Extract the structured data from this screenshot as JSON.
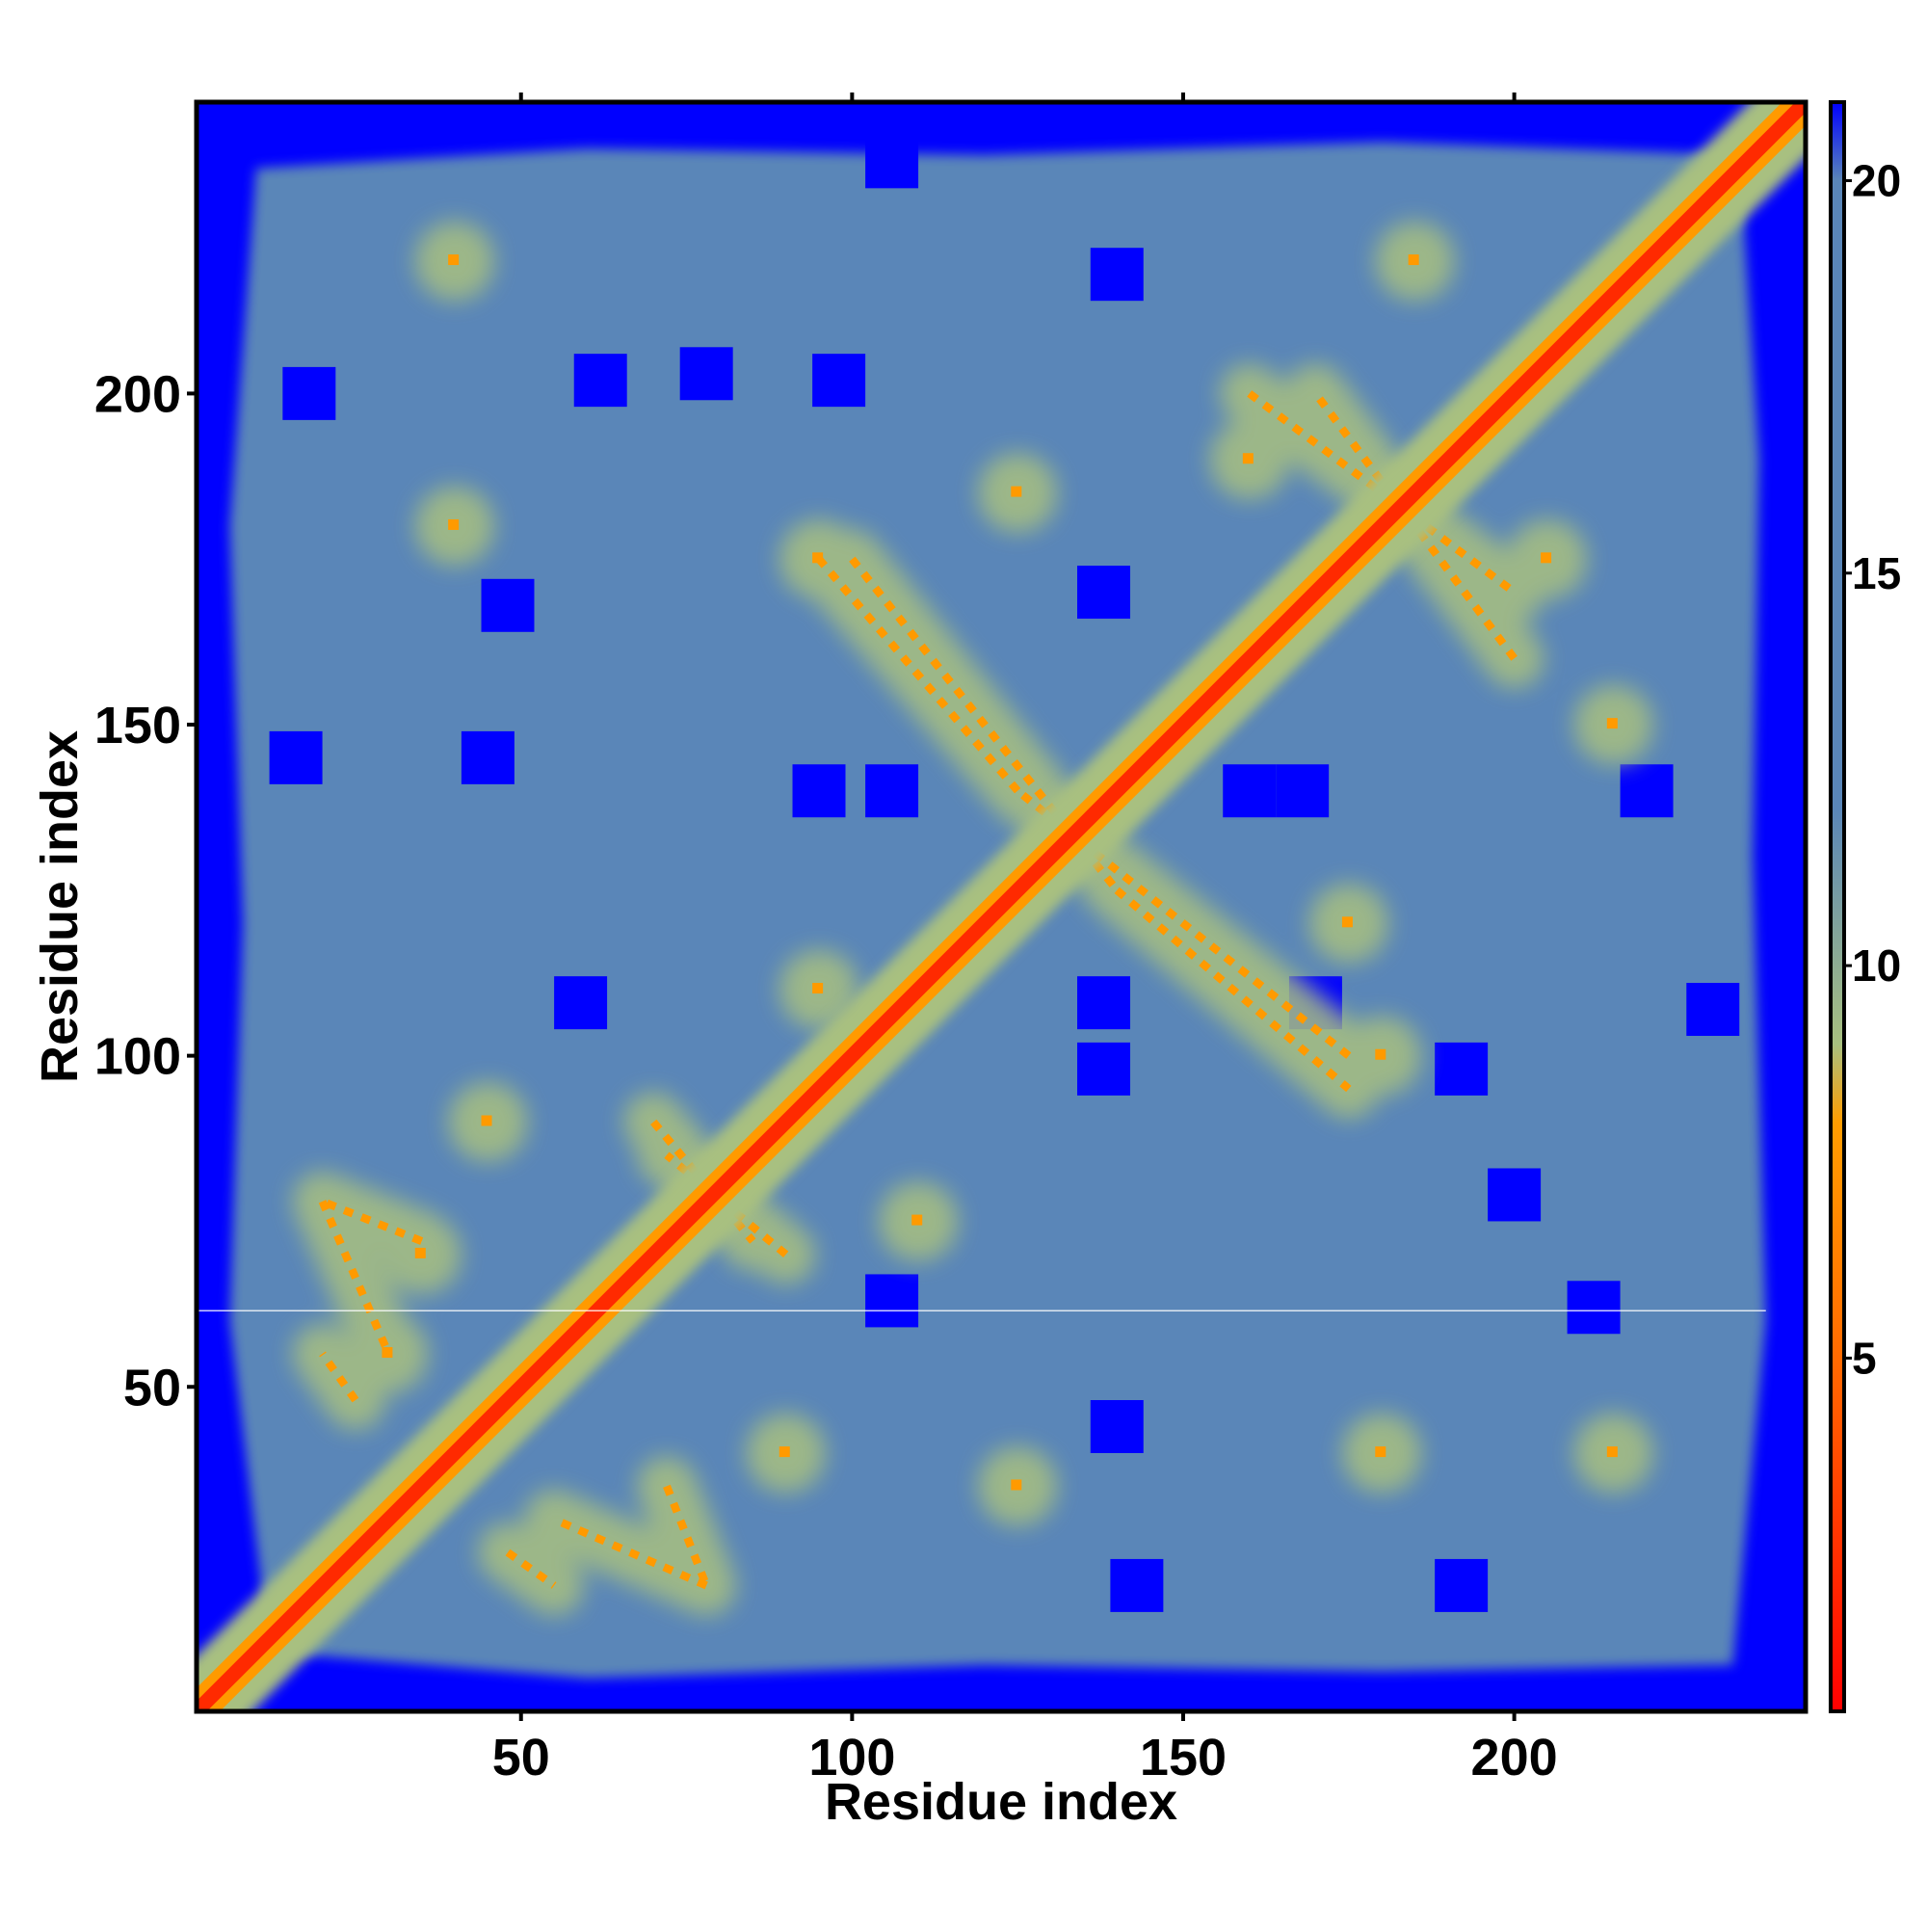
{
  "chart_data": {
    "type": "heatmap",
    "title": "",
    "xlabel": "Residue index",
    "ylabel": "Residue index",
    "xlim": [
      1,
      244
    ],
    "ylim": [
      1,
      244
    ],
    "x_ticks": [
      50,
      100,
      150,
      200
    ],
    "y_ticks": [
      50,
      100,
      150,
      200
    ],
    "colorbar": {
      "ticks": [
        5,
        10,
        15,
        20
      ],
      "range": [
        0.5,
        21
      ],
      "stops": [
        {
          "value": 0.5,
          "color": "#ff0000"
        },
        {
          "value": 5,
          "color": "#ff6a00"
        },
        {
          "value": 8,
          "color": "#ff9d00"
        },
        {
          "value": 9,
          "color": "#a8c080"
        },
        {
          "value": 12,
          "color": "#5a86b8"
        },
        {
          "value": 20,
          "color": "#5a86b8"
        },
        {
          "value": 21,
          "color": "#0000ff"
        }
      ]
    },
    "colors": {
      "near_contact": "#ff2a00",
      "contact": "#ff9a00",
      "mid": "#a8c080",
      "background": "#5a86b8",
      "far": "#0000ff"
    },
    "diagonal": "strong contact band along x = y",
    "secondary_contact_bands": [
      {
        "from": [
          100,
          175
        ],
        "to": [
          140,
          125
        ]
      },
      {
        "from": [
          140,
          125
        ],
        "to": [
          175,
          95
        ]
      },
      {
        "from": [
          160,
          200
        ],
        "to": [
          200,
          170
        ]
      },
      {
        "from": [
          20,
          78
        ],
        "to": [
          30,
          55
        ]
      },
      {
        "from": [
          70,
          90
        ],
        "to": [
          85,
          72
        ]
      },
      {
        "from": [
          48,
          25
        ],
        "to": [
          55,
          20
        ]
      },
      {
        "from": [
          72,
          35
        ],
        "to": [
          78,
          20
        ]
      }
    ],
    "contact_patches": [
      {
        "x": 40,
        "y": 220
      },
      {
        "x": 40,
        "y": 180
      },
      {
        "x": 95,
        "y": 175
      },
      {
        "x": 125,
        "y": 185
      },
      {
        "x": 160,
        "y": 190
      },
      {
        "x": 185,
        "y": 220
      },
      {
        "x": 205,
        "y": 175
      },
      {
        "x": 215,
        "y": 150
      },
      {
        "x": 175,
        "y": 120
      },
      {
        "x": 180,
        "y": 100
      },
      {
        "x": 45,
        "y": 90
      },
      {
        "x": 95,
        "y": 110
      },
      {
        "x": 110,
        "y": 75
      },
      {
        "x": 180,
        "y": 40
      },
      {
        "x": 215,
        "y": 40
      },
      {
        "x": 90,
        "y": 40
      },
      {
        "x": 125,
        "y": 35
      },
      {
        "x": 35,
        "y": 70
      },
      {
        "x": 30,
        "y": 55
      }
    ],
    "far_patches": [
      {
        "x": 18,
        "y": 200
      },
      {
        "x": 62,
        "y": 202
      },
      {
        "x": 78,
        "y": 203
      },
      {
        "x": 98,
        "y": 202
      },
      {
        "x": 106,
        "y": 235
      },
      {
        "x": 140,
        "y": 218
      },
      {
        "x": 138,
        "y": 170
      },
      {
        "x": 48,
        "y": 168
      },
      {
        "x": 45,
        "y": 145
      },
      {
        "x": 95,
        "y": 140
      },
      {
        "x": 106,
        "y": 140
      },
      {
        "x": 16,
        "y": 145
      },
      {
        "x": 59,
        "y": 108
      },
      {
        "x": 138,
        "y": 108
      },
      {
        "x": 138,
        "y": 98
      },
      {
        "x": 200,
        "y": 79
      },
      {
        "x": 106,
        "y": 63
      },
      {
        "x": 140,
        "y": 44
      },
      {
        "x": 192,
        "y": 20
      },
      {
        "x": 143,
        "y": 20
      },
      {
        "x": 212,
        "y": 62
      },
      {
        "x": 192,
        "y": 98
      },
      {
        "x": 230,
        "y": 107
      },
      {
        "x": 220,
        "y": 140
      },
      {
        "x": 160,
        "y": 140
      },
      {
        "x": 168,
        "y": 140
      },
      {
        "x": 170,
        "y": 108
      }
    ],
    "horizontal_line_y": 61.5,
    "horizontal_line_color": "#ffffff"
  }
}
